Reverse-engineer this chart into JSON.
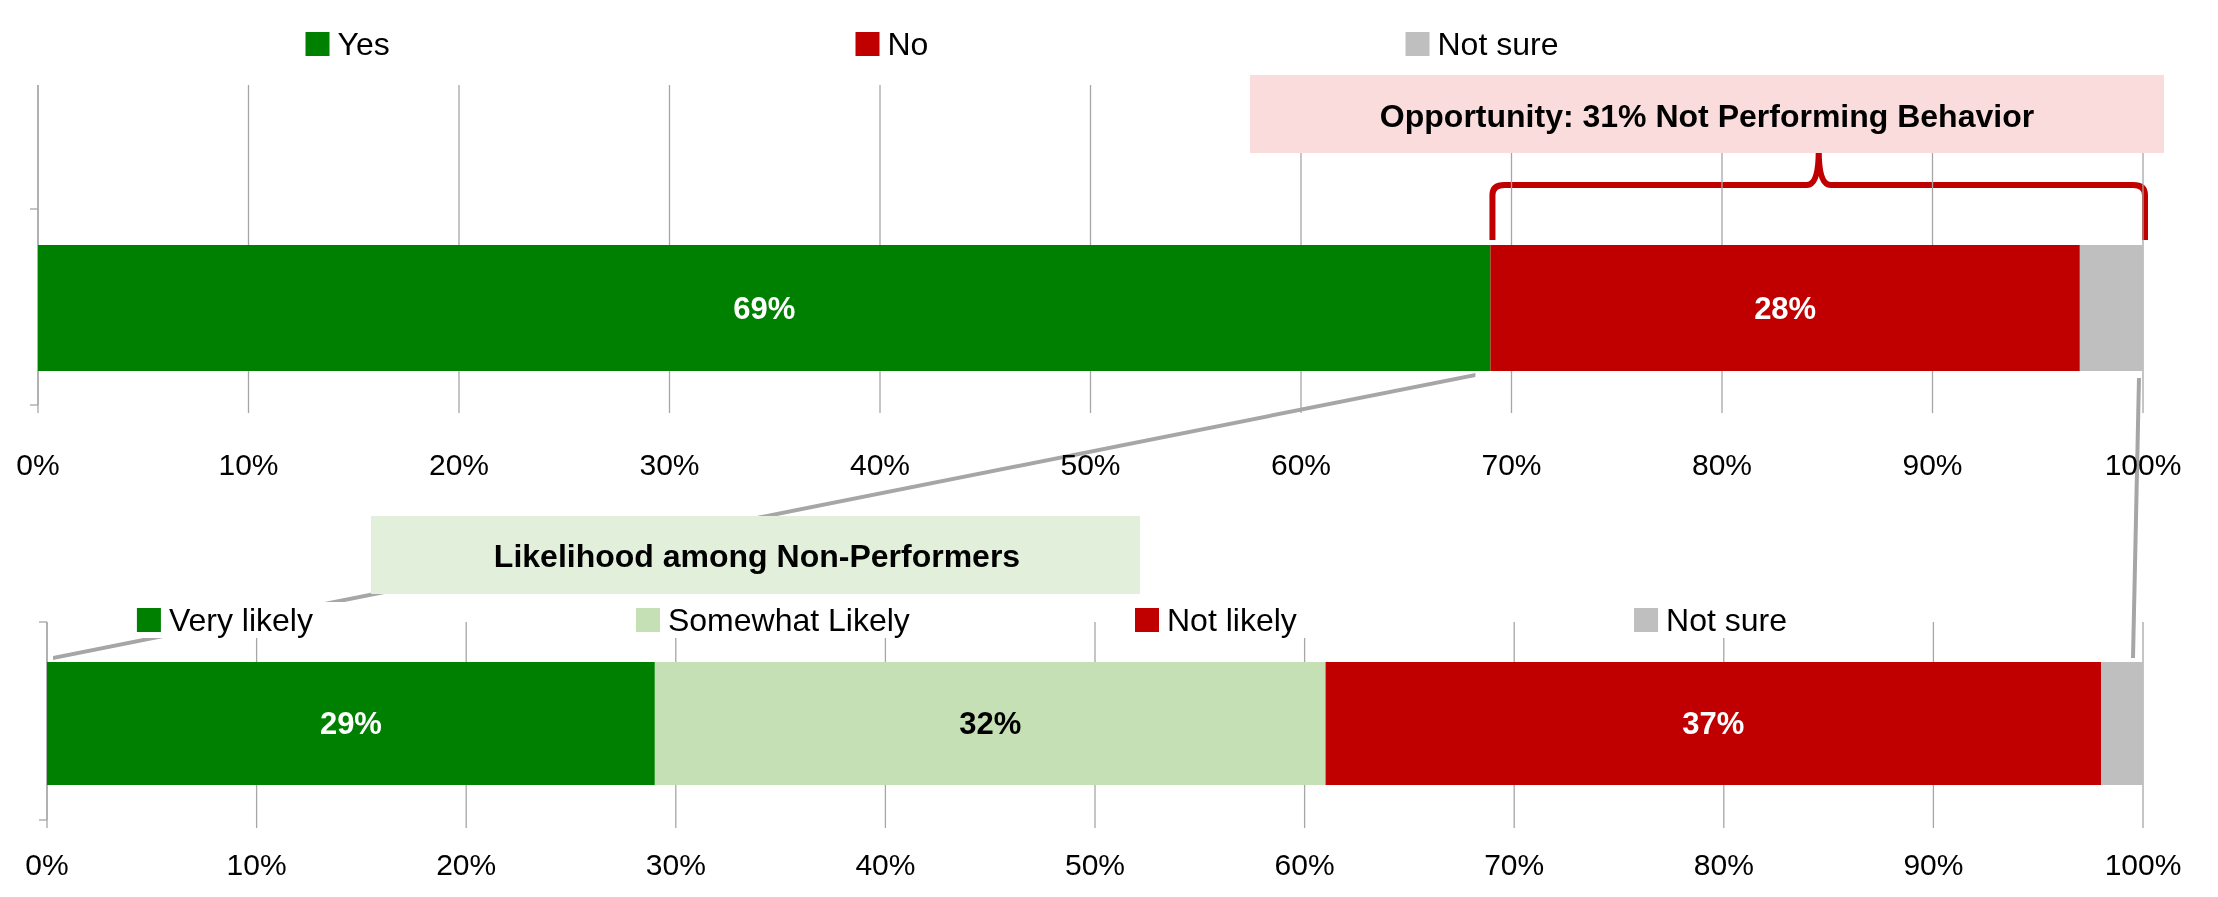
{
  "chart_data": [
    {
      "type": "bar",
      "orientation": "horizontal",
      "stacked": true,
      "categories": [
        null
      ],
      "series": [
        {
          "name": "Yes",
          "color": "#008000",
          "values": [
            69
          ],
          "value_labels": [
            "69%"
          ]
        },
        {
          "name": "No",
          "color": "#c00000",
          "values": [
            28
          ],
          "value_labels": [
            "28%"
          ]
        },
        {
          "name": "Not sure",
          "color": "#bfbfbf",
          "values": [
            3
          ],
          "value_labels": [
            null
          ]
        }
      ],
      "xlim": [
        0,
        100
      ],
      "xticks": [
        {
          "value": 0,
          "label": "0%"
        },
        {
          "value": 10,
          "label": "10%"
        },
        {
          "value": 20,
          "label": "20%"
        },
        {
          "value": 30,
          "label": "30%"
        },
        {
          "value": 40,
          "label": "40%"
        },
        {
          "value": 50,
          "label": "50%"
        },
        {
          "value": 60,
          "label": "60%"
        },
        {
          "value": 70,
          "label": "70%"
        },
        {
          "value": 80,
          "label": "80%"
        },
        {
          "value": 90,
          "label": "90%"
        },
        {
          "value": 100,
          "label": "100%"
        }
      ],
      "grid": "x",
      "legend": "top",
      "annotations": [
        "Opportunity: 31% Not Performing Behavior"
      ]
    },
    {
      "type": "bar",
      "orientation": "horizontal",
      "stacked": true,
      "categories": [
        null
      ],
      "title": "Likelihood among Non-Performers",
      "series": [
        {
          "name": "Very likely",
          "color": "#008000",
          "values": [
            29
          ],
          "value_labels": [
            "29%"
          ]
        },
        {
          "name": "Somewhat Likely",
          "color": "#c5e0b4",
          "values": [
            32
          ],
          "value_labels": [
            "32%"
          ]
        },
        {
          "name": "Not likely",
          "color": "#c00000",
          "values": [
            37
          ],
          "value_labels": [
            "37%"
          ]
        },
        {
          "name": "Not sure",
          "color": "#bfbfbf",
          "values": [
            2
          ],
          "value_labels": [
            null
          ]
        }
      ],
      "xlim": [
        0,
        100
      ],
      "xticks": [
        {
          "value": 0,
          "label": "0%"
        },
        {
          "value": 10,
          "label": "10%"
        },
        {
          "value": 20,
          "label": "20%"
        },
        {
          "value": 30,
          "label": "30%"
        },
        {
          "value": 40,
          "label": "40%"
        },
        {
          "value": 50,
          "label": "50%"
        },
        {
          "value": 60,
          "label": "60%"
        },
        {
          "value": 70,
          "label": "70%"
        },
        {
          "value": 80,
          "label": "80%"
        },
        {
          "value": 90,
          "label": "90%"
        },
        {
          "value": 100,
          "label": "100%"
        }
      ],
      "grid": "x",
      "legend": "top"
    }
  ]
}
